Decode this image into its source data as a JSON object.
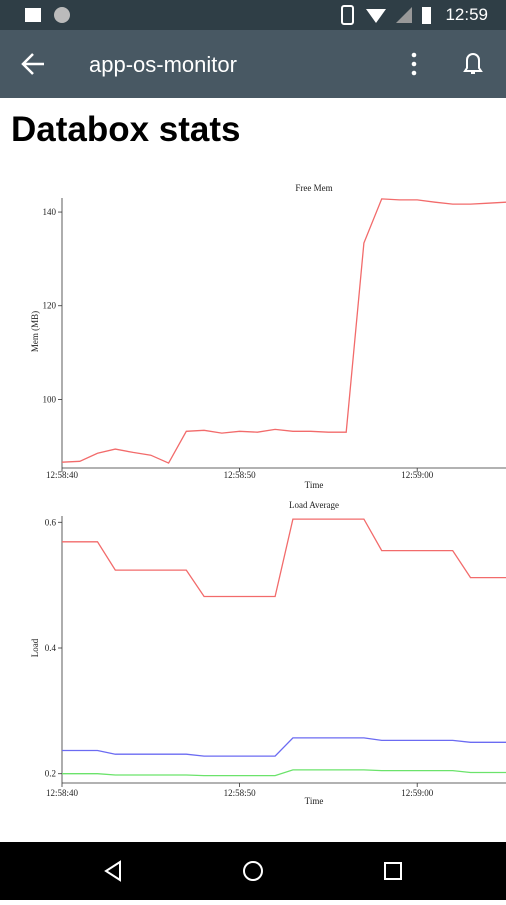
{
  "status_bar": {
    "time": "12:59"
  },
  "app_bar": {
    "title": "app-os-monitor"
  },
  "page": {
    "heading": "Databox stats"
  },
  "chart_data": [
    {
      "type": "line",
      "title": "Free Mem",
      "x_label": "Time",
      "y_label": "Mem (MB)",
      "x": [
        "12:58:40",
        "12:58:41",
        "12:58:42",
        "12:58:43",
        "12:58:44",
        "12:58:45",
        "12:58:46",
        "12:58:47",
        "12:58:48",
        "12:58:49",
        "12:58:50",
        "12:58:51",
        "12:58:52",
        "12:58:53",
        "12:58:54",
        "12:58:55",
        "12:58:56",
        "12:58:57",
        "12:58:58",
        "12:58:59",
        "12:59:00",
        "12:59:01",
        "12:59:02",
        "12:59:03",
        "12:59:04",
        "12:59:05"
      ],
      "series": [
        {
          "color": "#f26b6b",
          "values": [
            86.6,
            86.8,
            88.5,
            89.4,
            88.7,
            88.1,
            86.4,
            93.2,
            93.4,
            92.8,
            93.2,
            93.0,
            93.6,
            93.2,
            93.2,
            93.0,
            93.0,
            133.4,
            142.8,
            142.6,
            142.6,
            142.1,
            141.7,
            141.7,
            141.9,
            142.1
          ]
        }
      ],
      "xlim": [
        "12:58:40",
        "12:59:05"
      ],
      "xticks": [
        "12:58:40",
        "12:58:50",
        "12:59:00"
      ],
      "ylim": [
        86,
        143
      ],
      "yticks": [
        100,
        120,
        140
      ]
    },
    {
      "type": "line",
      "title": "Load Average",
      "x_label": "Time",
      "y_label": "Load",
      "x": [
        "12:58:40",
        "12:58:41",
        "12:58:42",
        "12:58:43",
        "12:58:44",
        "12:58:45",
        "12:58:46",
        "12:58:47",
        "12:58:48",
        "12:58:49",
        "12:58:50",
        "12:58:51",
        "12:58:52",
        "12:58:53",
        "12:58:54",
        "12:58:55",
        "12:58:56",
        "12:58:57",
        "12:58:58",
        "12:58:59",
        "12:59:00",
        "12:59:01",
        "12:59:02",
        "12:59:03",
        "12:59:04",
        "12:59:05"
      ],
      "series": [
        {
          "color": "#f26b6b",
          "values": [
            0.569,
            0.569,
            0.569,
            0.524,
            0.524,
            0.524,
            0.524,
            0.524,
            0.482,
            0.482,
            0.482,
            0.482,
            0.482,
            0.605,
            0.605,
            0.605,
            0.605,
            0.605,
            0.555,
            0.555,
            0.555,
            0.555,
            0.555,
            0.512,
            0.512,
            0.512
          ]
        },
        {
          "color": "#6b6bf2",
          "values": [
            0.237,
            0.237,
            0.237,
            0.231,
            0.231,
            0.231,
            0.231,
            0.231,
            0.228,
            0.228,
            0.228,
            0.228,
            0.228,
            0.257,
            0.257,
            0.257,
            0.257,
            0.257,
            0.253,
            0.253,
            0.253,
            0.253,
            0.253,
            0.25,
            0.25,
            0.25
          ]
        },
        {
          "color": "#6be36b",
          "values": [
            0.2,
            0.2,
            0.2,
            0.198,
            0.198,
            0.198,
            0.198,
            0.198,
            0.197,
            0.197,
            0.197,
            0.197,
            0.197,
            0.206,
            0.206,
            0.206,
            0.206,
            0.206,
            0.205,
            0.205,
            0.205,
            0.205,
            0.205,
            0.202,
            0.202,
            0.202
          ]
        }
      ],
      "xlim": [
        "12:58:40",
        "12:59:05"
      ],
      "xticks": [
        "12:58:40",
        "12:58:50",
        "12:59:00"
      ],
      "ylim": [
        0.19,
        0.61
      ],
      "yticks": [
        0.2,
        0.4,
        0.6
      ]
    }
  ]
}
